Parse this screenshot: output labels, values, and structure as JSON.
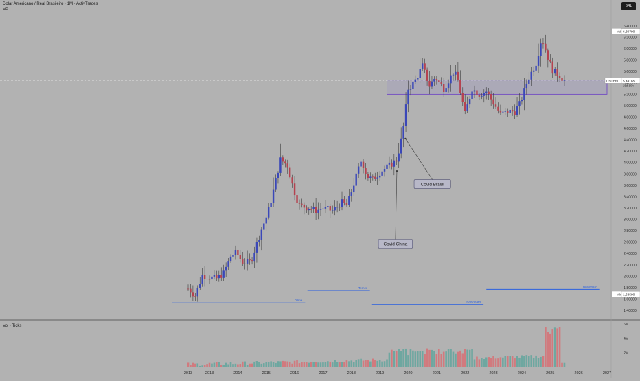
{
  "header": {
    "title": "Dolar Americano / Real Brasileiro · 1M · ActivTrades",
    "indicator": "VP",
    "volume_label": "Vol · Ticks",
    "currency_button": "BRL"
  },
  "colors": {
    "background": "#b2b2b2",
    "up": "#3a47b8",
    "down": "#b5424f",
    "wick": "#3a3a3a",
    "zone_border": "#6a3fc4",
    "annotation_line": "#2a5fe0",
    "vol_up": "#6ea7a0",
    "vol_down": "#d17a7e"
  },
  "chart_data": {
    "type": "candlestick",
    "title": "Dolar Americano / Real Brasileiro · 1M · ActivTrades",
    "ylim": [
      1.3,
      6.55
    ],
    "xlim": [
      2012.0,
      2027.25
    ],
    "y_ticks": [
      "6,40000",
      "6,20000",
      "6,00000",
      "5,80000",
      "5,60000",
      "5,40000",
      "5,20000",
      "5,00000",
      "4,80000",
      "4,60000",
      "4,40000",
      "4,20000",
      "4,00000",
      "3,80000",
      "3,60000",
      "3,40000",
      "3,20000",
      "3,00000",
      "2,80000",
      "2,60000",
      "2,40000",
      "2,20000",
      "2,00000",
      "1,80000",
      "1,60000",
      "1,40000"
    ],
    "y_tick_values": [
      6.4,
      6.2,
      6.0,
      5.8,
      5.6,
      5.4,
      5.2,
      5.0,
      4.8,
      4.6,
      4.4,
      4.2,
      4.0,
      3.8,
      3.6,
      3.4,
      3.2,
      3.0,
      2.8,
      2.6,
      2.4,
      2.2,
      2.0,
      1.8,
      1.6,
      1.4
    ],
    "x_ticks": [
      "2013",
      "2013",
      "2014",
      "2015",
      "2016",
      "2017",
      "2018",
      "2019",
      "2020",
      "2021",
      "2022",
      "2023",
      "2024",
      "2025",
      "2026",
      "2027"
    ],
    "x_tick_values": [
      2012.5,
      2013.25,
      2014.25,
      2015.25,
      2016.25,
      2017.25,
      2018.25,
      2019.25,
      2020.25,
      2021.25,
      2022.25,
      2023.25,
      2024.25,
      2025.25,
      2026.25,
      2027.25
    ],
    "price_labels": {
      "max": {
        "label": "Máx",
        "value": "6,30790",
        "y": 6.3079
      },
      "last": {
        "label": "USDBRL",
        "value": "5,44165",
        "countdown": "25d 10h",
        "y": 5.44165
      },
      "min": {
        "label": "Mín",
        "value": "1,68590",
        "y": 1.6859
      }
    },
    "zone": {
      "x_start": 2019.5,
      "x_end": 2027.25,
      "y_low": 5.2,
      "y_high": 5.45
    },
    "annotations": [
      {
        "text": "Covid China",
        "x": 2019.85,
        "y": 3.85,
        "label_x": 2019.8,
        "label_y": 2.65
      },
      {
        "text": "Covid Brasil",
        "x": 2020.15,
        "y": 4.42,
        "label_x": 2021.1,
        "label_y": 3.7
      }
    ],
    "ranges": [
      {
        "text": "Dilma",
        "x_start": 2012.0,
        "x_end": 2016.62,
        "y": 1.53
      },
      {
        "text": "Temer",
        "x_start": 2016.7,
        "x_end": 2018.9,
        "y": 1.75
      },
      {
        "text": "Bolsonaro",
        "x_start": 2018.95,
        "x_end": 2022.9,
        "y": 1.5
      },
      {
        "text": "Bolsonaro",
        "x_start": 2023.0,
        "x_end": 2027.0,
        "y": 1.77
      }
    ],
    "volume": {
      "ylim": [
        0,
        6.2
      ],
      "ticks": [
        "6M",
        "4M",
        "2M"
      ],
      "tick_values": [
        6,
        4,
        2
      ]
    },
    "keypoints": [
      [
        2012.5,
        1.78
      ],
      [
        2012.75,
        1.66
      ],
      [
        2013.0,
        2.02
      ],
      [
        2013.25,
        1.98
      ],
      [
        2013.5,
        1.96
      ],
      [
        2013.75,
        2.05
      ],
      [
        2014.0,
        2.35
      ],
      [
        2014.2,
        2.42
      ],
      [
        2014.4,
        2.25
      ],
      [
        2014.7,
        2.25
      ],
      [
        2014.9,
        2.55
      ],
      [
        2015.1,
        2.85
      ],
      [
        2015.3,
        3.1
      ],
      [
        2015.5,
        3.5
      ],
      [
        2015.75,
        4.05
      ],
      [
        2016.0,
        3.95
      ],
      [
        2016.2,
        3.55
      ],
      [
        2016.4,
        3.25
      ],
      [
        2016.75,
        3.2
      ],
      [
        2017.0,
        3.15
      ],
      [
        2017.25,
        3.2
      ],
      [
        2017.6,
        3.15
      ],
      [
        2017.9,
        3.3
      ],
      [
        2018.1,
        3.25
      ],
      [
        2018.35,
        3.65
      ],
      [
        2018.6,
        4.05
      ],
      [
        2018.8,
        3.75
      ],
      [
        2019.0,
        3.7
      ],
      [
        2019.3,
        3.85
      ],
      [
        2019.6,
        3.95
      ],
      [
        2019.85,
        4.05
      ],
      [
        2020.05,
        4.5
      ],
      [
        2020.25,
        5.3
      ],
      [
        2020.45,
        5.4
      ],
      [
        2020.75,
        5.7
      ],
      [
        2021.0,
        5.35
      ],
      [
        2021.2,
        5.5
      ],
      [
        2021.5,
        5.3
      ],
      [
        2021.85,
        5.6
      ],
      [
        2022.0,
        5.45
      ],
      [
        2022.25,
        4.85
      ],
      [
        2022.5,
        5.3
      ],
      [
        2022.75,
        5.2
      ],
      [
        2023.0,
        5.25
      ],
      [
        2023.25,
        5.05
      ],
      [
        2023.5,
        4.85
      ],
      [
        2023.75,
        4.9
      ],
      [
        2024.0,
        4.9
      ],
      [
        2024.2,
        5.05
      ],
      [
        2024.45,
        5.45
      ],
      [
        2024.75,
        5.75
      ],
      [
        2024.95,
        6.2
      ],
      [
        2025.2,
        5.8
      ],
      [
        2025.35,
        5.6
      ],
      [
        2025.55,
        5.55
      ],
      [
        2025.75,
        5.44
      ]
    ]
  }
}
